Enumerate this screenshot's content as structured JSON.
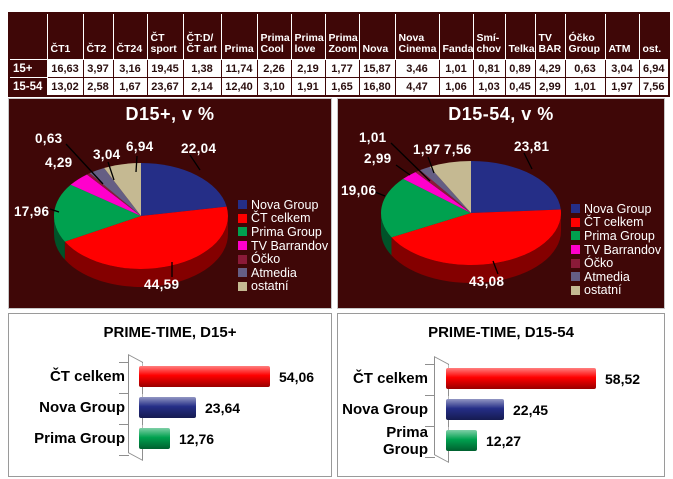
{
  "colors": {
    "panel_background": "#3F0707",
    "table_header_background": "#3F0707",
    "table_text": "#2A0E0E",
    "nova_group": "#252E87",
    "ct_celkem": "#FF0000",
    "prima_group": "#00A14F",
    "tv_barrandov": "#FF00CC",
    "ocko": "#8A1A38",
    "atmedia": "#655E84",
    "ostatni": "#C5B992"
  },
  "table": {
    "columns": [
      "ČT1",
      "ČT2",
      "ČT24",
      "ČT\nsport",
      "ČT:D/\nČT art",
      "Prima",
      "Prima\nCool",
      "Prima\nlove",
      "Prima\nZoom",
      "Nova",
      "Nova\nCinema",
      "Fanda",
      "Smí-\nchov",
      "Telka",
      "TV\nBAR",
      "Óčko\nGroup",
      "ATM",
      "ost."
    ],
    "rows": [
      {
        "label": "15+",
        "values": [
          "16,63",
          "3,97",
          "3,16",
          "19,45",
          "1,38",
          "11,74",
          "2,26",
          "2,19",
          "1,77",
          "15,87",
          "3,46",
          "1,01",
          "0,81",
          "0,89",
          "4,29",
          "0,63",
          "3,04",
          "6,94"
        ]
      },
      {
        "label": "15-54",
        "values": [
          "13,02",
          "2,58",
          "1,67",
          "23,67",
          "2,14",
          "12,40",
          "3,10",
          "1,91",
          "1,65",
          "16,80",
          "4,47",
          "1,06",
          "1,03",
          "0,45",
          "2,99",
          "1,01",
          "1,97",
          "7,56"
        ]
      }
    ]
  },
  "chart_data": [
    {
      "type": "pie",
      "title": "D15+, v %",
      "categories": [
        "Nova Group",
        "ČT celkem",
        "Prima Group",
        "TV Barrandov",
        "Óčko",
        "Atmedia",
        "ostatní"
      ],
      "values": [
        22.04,
        44.59,
        17.96,
        4.29,
        0.63,
        3.04,
        6.94
      ],
      "labels": [
        "22,04",
        "44,59",
        "17,96",
        "4,29",
        "0,63",
        "3,04",
        "6,94"
      ],
      "colors": [
        "#252E87",
        "#FF0000",
        "#00A14F",
        "#FF00CC",
        "#8A1A38",
        "#655E84",
        "#C5B992"
      ],
      "legend_position": "right",
      "background": "#3F0707",
      "style": "3d-pie, starts at 12 o'clock clockwise"
    },
    {
      "type": "pie",
      "title": "D15-54, v %",
      "categories": [
        "Nova Group",
        "ČT celkem",
        "Prima Group",
        "TV Barrandov",
        "Óčko",
        "Atmedia",
        "ostatní"
      ],
      "values": [
        23.81,
        43.08,
        19.06,
        2.99,
        1.01,
        1.97,
        7.56
      ],
      "labels": [
        "23,81",
        "43,08",
        "19,06",
        "2,99",
        "1,01",
        "1,97",
        "7,56"
      ],
      "colors": [
        "#252E87",
        "#FF0000",
        "#00A14F",
        "#FF00CC",
        "#8A1A38",
        "#655E84",
        "#C5B992"
      ],
      "legend_position": "right",
      "background": "#3F0707",
      "style": "3d-pie, starts at 12 o'clock clockwise"
    },
    {
      "type": "bar",
      "title": "PRIME-TIME, D15+",
      "categories": [
        "ČT celkem",
        "Nova Group",
        "Prima Group"
      ],
      "values": [
        54.06,
        23.64,
        12.76
      ],
      "labels": [
        "54,06",
        "23,64",
        "12,76"
      ],
      "colors": [
        "#FF0000",
        "#252E87",
        "#00A14F"
      ],
      "orientation": "horizontal",
      "background": "#FFFFFF"
    },
    {
      "type": "bar",
      "title": "PRIME-TIME, D15-54",
      "categories": [
        "ČT celkem",
        "Nova Group",
        "Prima Group"
      ],
      "values": [
        58.52,
        22.45,
        12.27
      ],
      "labels": [
        "58,52",
        "22,45",
        "12,27"
      ],
      "colors": [
        "#FF0000",
        "#252E87",
        "#00A14F"
      ],
      "orientation": "horizontal",
      "background": "#FFFFFF"
    }
  ]
}
